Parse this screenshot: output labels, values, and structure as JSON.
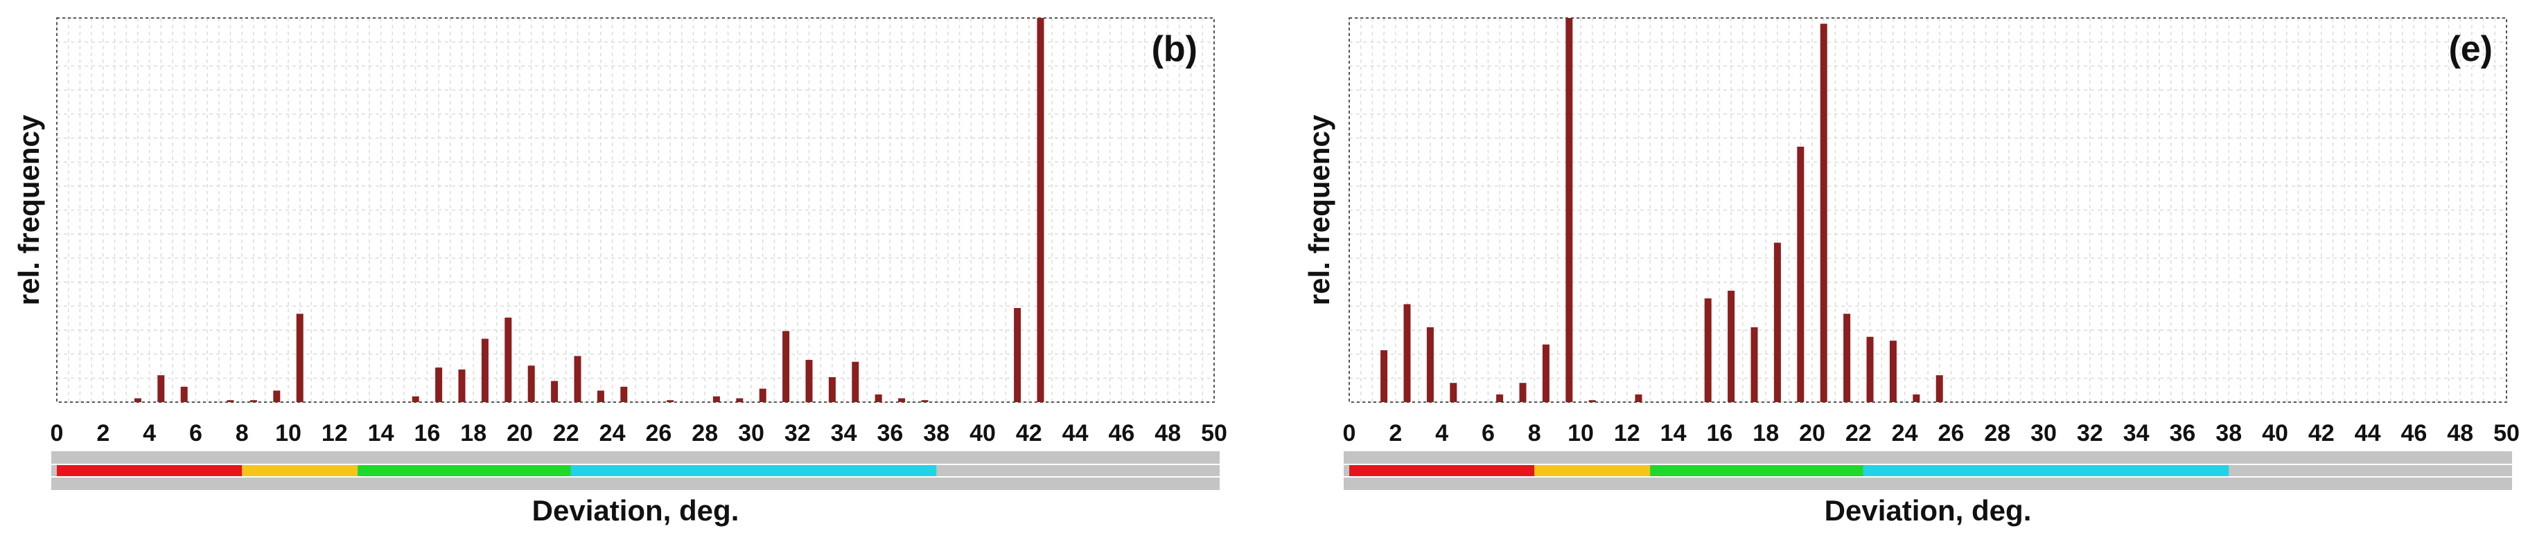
{
  "chart_data": [
    {
      "type": "bar",
      "title": "",
      "panel_label": "(b)",
      "xlabel": "Deviation, deg.",
      "ylabel": "rel. frequency",
      "xlim": [
        0,
        50
      ],
      "ylim": [
        0,
        1
      ],
      "x_ticks": [
        0,
        2,
        4,
        6,
        8,
        10,
        12,
        14,
        16,
        18,
        20,
        22,
        24,
        26,
        28,
        30,
        32,
        34,
        36,
        38,
        40,
        42,
        44,
        46,
        48,
        50
      ],
      "grid": true,
      "bar_color": "#8B1E1E",
      "x": [
        3.5,
        4.5,
        5.5,
        7.5,
        8.5,
        9.5,
        10.5,
        15.5,
        16.5,
        17.5,
        18.5,
        19.5,
        20.5,
        21.5,
        22.5,
        23.5,
        24.5,
        26.5,
        28.5,
        29.5,
        30.5,
        31.5,
        32.5,
        33.5,
        34.5,
        35.5,
        36.5,
        37.5,
        41.5,
        42.5
      ],
      "values": [
        0.01,
        0.07,
        0.04,
        0.005,
        0.005,
        0.03,
        0.23,
        0.015,
        0.09,
        0.085,
        0.165,
        0.22,
        0.095,
        0.055,
        0.12,
        0.03,
        0.04,
        0.005,
        0.015,
        0.01,
        0.035,
        0.185,
        0.11,
        0.065,
        0.105,
        0.02,
        0.01,
        0.005,
        0.245,
        1.0
      ],
      "range_bands": [
        {
          "from": 0,
          "to": 8,
          "color": "#E8141C"
        },
        {
          "from": 8,
          "to": 13,
          "color": "#F5C518"
        },
        {
          "from": 13,
          "to": 22.2,
          "color": "#1ED82A"
        },
        {
          "from": 22.2,
          "to": 38,
          "color": "#22D3E6"
        }
      ]
    },
    {
      "type": "bar",
      "title": "",
      "panel_label": "(e)",
      "xlabel": "Deviation, deg.",
      "ylabel": "rel. frequency",
      "xlim": [
        0,
        50
      ],
      "ylim": [
        0,
        1
      ],
      "x_ticks": [
        0,
        2,
        4,
        6,
        8,
        10,
        12,
        14,
        16,
        18,
        20,
        22,
        24,
        26,
        28,
        30,
        32,
        34,
        36,
        38,
        40,
        42,
        44,
        46,
        48,
        50
      ],
      "grid": true,
      "bar_color": "#8B1E1E",
      "x": [
        1.5,
        2.5,
        3.5,
        4.5,
        6.5,
        7.5,
        8.5,
        9.5,
        10.5,
        12.5,
        15.5,
        16.5,
        17.5,
        18.5,
        19.5,
        20.5,
        21.5,
        22.5,
        23.5,
        24.5,
        25.5
      ],
      "values": [
        0.135,
        0.255,
        0.195,
        0.05,
        0.02,
        0.05,
        0.15,
        1.0,
        0.005,
        0.02,
        0.27,
        0.29,
        0.195,
        0.415,
        0.665,
        0.985,
        0.23,
        0.17,
        0.16,
        0.02,
        0.07
      ],
      "range_bands": [
        {
          "from": 0,
          "to": 8,
          "color": "#E8141C"
        },
        {
          "from": 8,
          "to": 13,
          "color": "#F5C518"
        },
        {
          "from": 13,
          "to": 22.2,
          "color": "#1ED82A"
        },
        {
          "from": 22.2,
          "to": 38,
          "color": "#22D3E6"
        }
      ]
    }
  ]
}
